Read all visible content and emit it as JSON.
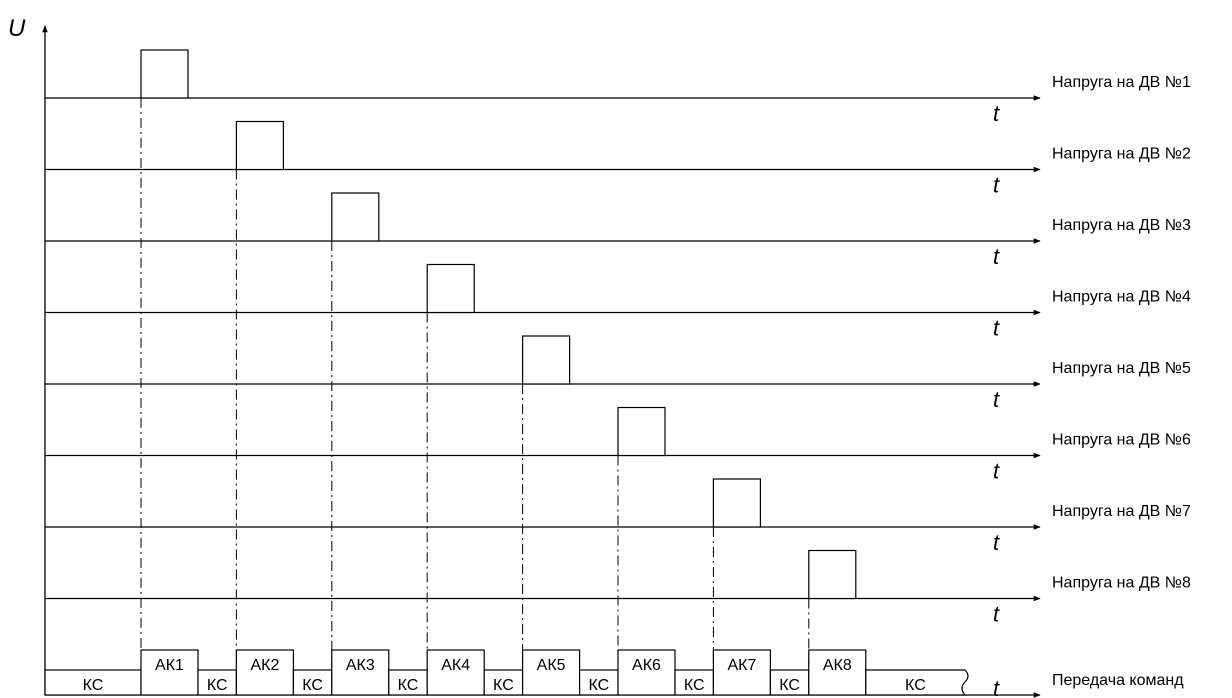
{
  "axis": {
    "u_label": "U",
    "t_label": "t"
  },
  "channels": [
    {
      "label": "Напруга на ДВ №1"
    },
    {
      "label": "Напруга на ДВ №2"
    },
    {
      "label": "Напруга на ДВ №3"
    },
    {
      "label": "Напруга на ДВ №4"
    },
    {
      "label": "Напруга на ДВ №5"
    },
    {
      "label": "Напруга на ДВ №6"
    },
    {
      "label": "Напруга на ДВ №7"
    },
    {
      "label": "Напруга на ДВ №8"
    }
  ],
  "command_line": {
    "label": "Передача команд",
    "segments": [
      "КС",
      "АК1",
      "КС",
      "АК2",
      "КС",
      "АК3",
      "КС",
      "АК4",
      "КС",
      "АК5",
      "КС",
      "АК6",
      "КС",
      "АК7",
      "КС",
      "АК8",
      "КС"
    ]
  }
}
